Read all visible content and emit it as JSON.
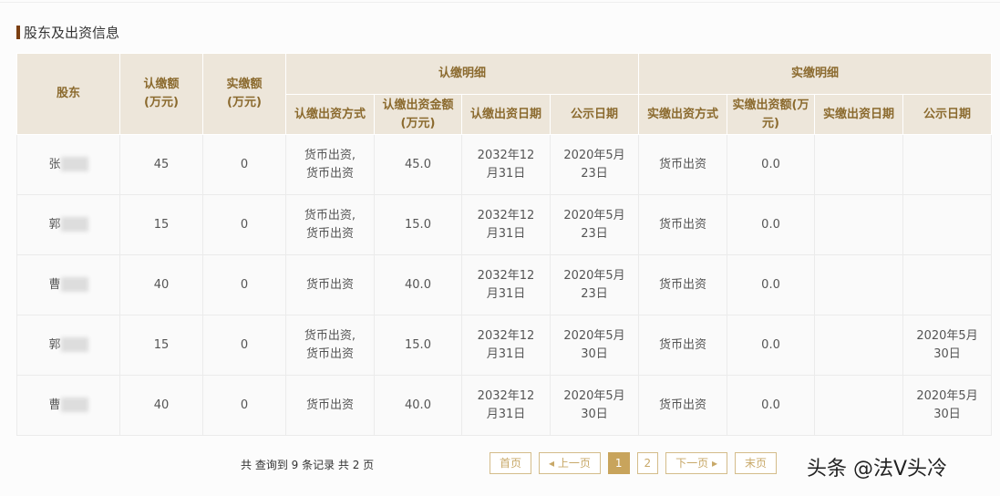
{
  "section_title": "股东及出资信息",
  "headers": {
    "shareholder": "股东",
    "subscribed": "认缴额\n(万元)",
    "paid": "实缴额\n(万元)",
    "sub_detail": "认缴明细",
    "paid_detail": "实缴明细",
    "sub_cols": [
      "认缴出资方式",
      "认缴出资金额(万元)",
      "认缴出资日期",
      "公示日期"
    ],
    "paid_cols": [
      "实缴出资方式",
      "实缴出资额(万元)",
      "实缴出资日期",
      "公示日期"
    ]
  },
  "rows": [
    {
      "name": "张",
      "subscribed": "45",
      "paid": "0",
      "sub_method": "货币出资,\n货币出资",
      "sub_amount": "45.0",
      "sub_date": "2032年12\n月31日",
      "sub_pub": "2020年5月\n23日",
      "paid_method": "货币出资",
      "paid_amount": "0.0",
      "paid_date": "",
      "paid_pub": ""
    },
    {
      "name": "郭",
      "subscribed": "15",
      "paid": "0",
      "sub_method": "货币出资,\n货币出资",
      "sub_amount": "15.0",
      "sub_date": "2032年12\n月31日",
      "sub_pub": "2020年5月\n23日",
      "paid_method": "货币出资",
      "paid_amount": "0.0",
      "paid_date": "",
      "paid_pub": ""
    },
    {
      "name": "曹",
      "subscribed": "40",
      "paid": "0",
      "sub_method": "货币出资",
      "sub_amount": "40.0",
      "sub_date": "2032年12\n月31日",
      "sub_pub": "2020年5月\n23日",
      "paid_method": "货币出资",
      "paid_amount": "0.0",
      "paid_date": "",
      "paid_pub": ""
    },
    {
      "name": "郭",
      "subscribed": "15",
      "paid": "0",
      "sub_method": "货币出资,\n货币出资",
      "sub_amount": "15.0",
      "sub_date": "2032年12\n月31日",
      "sub_pub": "2020年5月\n30日",
      "paid_method": "货币出资",
      "paid_amount": "0.0",
      "paid_date": "",
      "paid_pub": "2020年5月\n30日"
    },
    {
      "name": "曹",
      "subscribed": "40",
      "paid": "0",
      "sub_method": "货币出资",
      "sub_amount": "40.0",
      "sub_date": "2032年12\n月31日",
      "sub_pub": "2020年5月\n30日",
      "paid_method": "货币出资",
      "paid_amount": "0.0",
      "paid_date": "",
      "paid_pub": "2020年5月\n30日"
    }
  ],
  "footer": {
    "count": "共 查询到 9 条记录 共 2 页",
    "first": "首页",
    "prev": "◂ 上一页",
    "pages": [
      "1",
      "2"
    ],
    "next": "下一页 ▸",
    "last": "末页",
    "watermark": "头条 @法V头冷"
  },
  "colors": {
    "header_bg": "#ede6da",
    "header_text": "#8b6a2e",
    "accent": "#c8a45c"
  }
}
